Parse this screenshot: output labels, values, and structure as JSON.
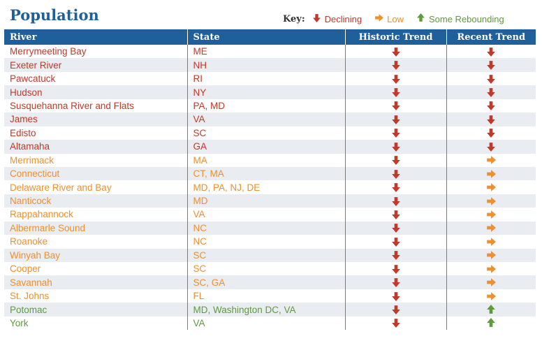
{
  "title": "Population",
  "key": {
    "label": "Key:",
    "items": [
      {
        "icon": "down-arrow-icon",
        "label": "Declining",
        "color": "#c0392b"
      },
      {
        "icon": "right-arrow-icon",
        "label": "Low",
        "color": "#ef8f2d"
      },
      {
        "icon": "up-arrow-icon",
        "label": "Some Rebounding",
        "color": "#5e9b3a"
      }
    ]
  },
  "colors": {
    "header": "#1f5f9a",
    "declining": "#c0392b",
    "low": "#ef8f2d",
    "rebounding": "#5e9b3a"
  },
  "table": {
    "headers": [
      "River",
      "State",
      "Historic Trend",
      "Recent Trend"
    ],
    "rows": [
      {
        "river": "Merrymeeting Bay",
        "state": "ME",
        "historic": "declining",
        "recent": "declining"
      },
      {
        "river": "Exeter River",
        "state": "NH",
        "historic": "declining",
        "recent": "declining"
      },
      {
        "river": "Pawcatuck",
        "state": "RI",
        "historic": "declining",
        "recent": "declining"
      },
      {
        "river": "Hudson",
        "state": "NY",
        "historic": "declining",
        "recent": "declining"
      },
      {
        "river": "Susquehanna River and Flats",
        "state": "PA, MD",
        "historic": "declining",
        "recent": "declining"
      },
      {
        "river": "James",
        "state": "VA",
        "historic": "declining",
        "recent": "declining"
      },
      {
        "river": "Edisto",
        "state": "SC",
        "historic": "declining",
        "recent": "declining"
      },
      {
        "river": "Altamaha",
        "state": "GA",
        "historic": "declining",
        "recent": "declining"
      },
      {
        "river": "Merrimack",
        "state": "MA",
        "historic": "declining",
        "recent": "low"
      },
      {
        "river": "Connecticut",
        "state": "CT, MA",
        "historic": "declining",
        "recent": "low"
      },
      {
        "river": "Delaware River and Bay",
        "state": "MD, PA, NJ, DE",
        "historic": "declining",
        "recent": "low"
      },
      {
        "river": "Nanticock",
        "state": "MD",
        "historic": "declining",
        "recent": "low"
      },
      {
        "river": "Rappahannock",
        "state": "VA",
        "historic": "declining",
        "recent": "low"
      },
      {
        "river": "Albermarle Sound",
        "state": "NC",
        "historic": "declining",
        "recent": "low"
      },
      {
        "river": "Roanoke",
        "state": "NC",
        "historic": "declining",
        "recent": "low"
      },
      {
        "river": "Winyah Bay",
        "state": "SC",
        "historic": "declining",
        "recent": "low"
      },
      {
        "river": "Cooper",
        "state": "SC",
        "historic": "declining",
        "recent": "low"
      },
      {
        "river": "Savannah",
        "state": "SC, GA",
        "historic": "declining",
        "recent": "low"
      },
      {
        "river": "St. Johns",
        "state": "FL",
        "historic": "declining",
        "recent": "low"
      },
      {
        "river": "Potomac",
        "state": "MD, Washington DC, VA",
        "historic": "declining",
        "recent": "rebounding"
      },
      {
        "river": "York",
        "state": "VA",
        "historic": "declining",
        "recent": "rebounding"
      }
    ]
  }
}
